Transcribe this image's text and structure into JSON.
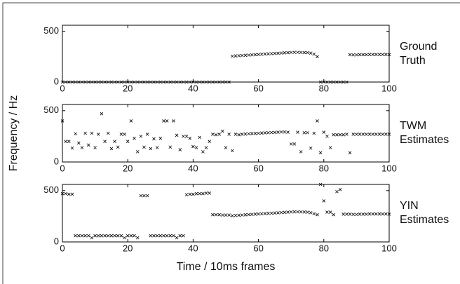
{
  "chart_data": [
    {
      "type": "scatter",
      "label": "Ground Truth",
      "color": "#000000",
      "marker": "x",
      "xlim": [
        0,
        100
      ],
      "xticks": [
        0,
        20,
        40,
        60,
        80,
        100
      ],
      "ylim": [
        0,
        560
      ],
      "yticks": [
        0,
        500
      ],
      "x": [
        0,
        1,
        2,
        3,
        4,
        5,
        6,
        7,
        8,
        9,
        10,
        11,
        12,
        13,
        14,
        15,
        16,
        17,
        18,
        19,
        20,
        21,
        22,
        23,
        24,
        25,
        26,
        27,
        28,
        29,
        30,
        31,
        32,
        33,
        34,
        35,
        36,
        37,
        38,
        39,
        40,
        41,
        42,
        43,
        44,
        45,
        46,
        47,
        48,
        49,
        50,
        51,
        52,
        53,
        54,
        55,
        56,
        57,
        58,
        59,
        60,
        61,
        62,
        63,
        64,
        65,
        66,
        67,
        68,
        69,
        70,
        71,
        72,
        73,
        74,
        75,
        76,
        77,
        78,
        79,
        80,
        81,
        82,
        83,
        84,
        85,
        86,
        87,
        88,
        89,
        90,
        91,
        92,
        93,
        94,
        95,
        96,
        97,
        98,
        99,
        100
      ],
      "values": [
        0,
        0,
        0,
        0,
        0,
        0,
        0,
        0,
        0,
        0,
        0,
        0,
        0,
        0,
        0,
        0,
        0,
        0,
        0,
        0,
        0,
        0,
        0,
        0,
        0,
        0,
        0,
        0,
        0,
        0,
        0,
        0,
        0,
        0,
        0,
        0,
        0,
        0,
        0,
        0,
        0,
        0,
        0,
        0,
        0,
        0,
        0,
        0,
        0,
        0,
        0,
        0,
        255,
        258,
        260,
        262,
        264,
        266,
        268,
        270,
        272,
        274,
        276,
        278,
        280,
        282,
        284,
        286,
        288,
        290,
        292,
        293,
        293,
        292,
        291,
        290,
        285,
        275,
        250,
        0,
        0,
        0,
        0,
        0,
        0,
        0,
        0,
        0,
        270,
        268,
        268,
        270,
        270,
        270,
        272,
        272,
        272,
        272,
        272,
        272,
        270
      ]
    },
    {
      "type": "scatter",
      "label": "TWM Estimates",
      "color": "#000000",
      "marker": "x",
      "ylabel": "Frequency / Hz",
      "xlim": [
        0,
        100
      ],
      "xticks": [
        0,
        20,
        40,
        60,
        80,
        100
      ],
      "ylim": [
        0,
        560
      ],
      "yticks": [
        0,
        500
      ],
      "x": [
        0,
        1,
        2,
        3,
        4,
        5,
        6,
        7,
        8,
        9,
        10,
        11,
        12,
        13,
        14,
        15,
        16,
        17,
        18,
        19,
        20,
        21,
        22,
        23,
        24,
        25,
        26,
        27,
        28,
        29,
        30,
        31,
        32,
        33,
        34,
        35,
        36,
        37,
        38,
        39,
        40,
        41,
        42,
        43,
        44,
        45,
        46,
        47,
        48,
        49,
        50,
        51,
        52,
        53,
        54,
        55,
        56,
        57,
        58,
        59,
        60,
        61,
        62,
        63,
        64,
        65,
        66,
        67,
        68,
        69,
        70,
        71,
        72,
        73,
        74,
        75,
        76,
        77,
        78,
        79,
        80,
        81,
        82,
        83,
        84,
        85,
        86,
        87,
        88,
        89,
        90,
        91,
        92,
        93,
        94,
        95,
        96,
        97,
        98,
        99,
        100
      ],
      "values": [
        400,
        200,
        200,
        135,
        275,
        185,
        140,
        280,
        165,
        280,
        140,
        270,
        470,
        200,
        280,
        130,
        200,
        145,
        270,
        270,
        200,
        400,
        230,
        100,
        250,
        145,
        270,
        130,
        225,
        140,
        230,
        400,
        400,
        145,
        400,
        260,
        120,
        250,
        250,
        230,
        150,
        140,
        240,
        100,
        140,
        200,
        270,
        265,
        270,
        300,
        140,
        270,
        110,
        270,
        265,
        270,
        272,
        275,
        277,
        278,
        280,
        282,
        284,
        285,
        287,
        288,
        290,
        292,
        292,
        290,
        175,
        175,
        290,
        100,
        285,
        285,
        135,
        280,
        400,
        90,
        290,
        250,
        140,
        265,
        265,
        265,
        265,
        270,
        90,
        270,
        270,
        270,
        270,
        270,
        270,
        270,
        270,
        270,
        270,
        270,
        270
      ]
    },
    {
      "type": "scatter",
      "label": "YIN Estimates",
      "color": "#000000",
      "marker": "x",
      "xlabel": "Time / 10ms frames",
      "xlim": [
        0,
        100
      ],
      "xticks": [
        0,
        20,
        40,
        60,
        80,
        100
      ],
      "ylim": [
        0,
        560
      ],
      "yticks": [
        0,
        500
      ],
      "x": [
        0,
        1,
        2,
        3,
        4,
        5,
        6,
        7,
        8,
        9,
        10,
        11,
        12,
        13,
        14,
        15,
        16,
        17,
        18,
        19,
        20,
        21,
        22,
        23,
        24,
        25,
        26,
        27,
        28,
        29,
        30,
        31,
        32,
        33,
        34,
        35,
        36,
        37,
        38,
        39,
        40,
        41,
        42,
        43,
        44,
        45,
        46,
        47,
        48,
        49,
        50,
        51,
        52,
        53,
        54,
        55,
        56,
        57,
        58,
        59,
        60,
        61,
        62,
        63,
        64,
        65,
        66,
        67,
        68,
        69,
        70,
        71,
        72,
        73,
        74,
        75,
        76,
        77,
        78,
        79,
        80,
        81,
        82,
        83,
        84,
        85,
        86,
        87,
        88,
        89,
        90,
        91,
        92,
        93,
        94,
        95,
        96,
        97,
        98,
        99,
        100
      ],
      "values": [
        470,
        470,
        465,
        465,
        60,
        60,
        60,
        60,
        60,
        40,
        60,
        60,
        60,
        60,
        60,
        60,
        60,
        60,
        60,
        40,
        60,
        60,
        60,
        40,
        450,
        450,
        450,
        60,
        60,
        60,
        60,
        60,
        60,
        60,
        60,
        40,
        60,
        60,
        460,
        465,
        465,
        470,
        470,
        470,
        475,
        475,
        265,
        265,
        265,
        262,
        262,
        262,
        255,
        258,
        260,
        262,
        264,
        266,
        268,
        270,
        272,
        274,
        276,
        278,
        280,
        282,
        284,
        286,
        288,
        290,
        292,
        293,
        293,
        292,
        291,
        290,
        285,
        275,
        265,
        560,
        400,
        290,
        290,
        265,
        490,
        510,
        270,
        270,
        270,
        268,
        268,
        270,
        270,
        270,
        272,
        272,
        272,
        272,
        272,
        272,
        270
      ]
    }
  ]
}
